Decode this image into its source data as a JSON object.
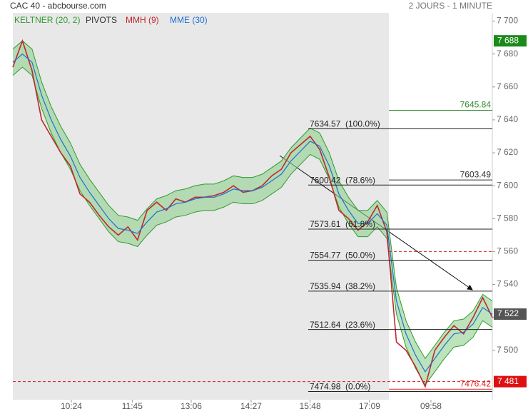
{
  "chart_data": {
    "type": "line",
    "title": "CAC 40 - abcbourse.com",
    "subtitle": "2 JOURS - 1 MINUTE",
    "pivots_label": "PIVOTS",
    "xlim": [
      0,
      100
    ],
    "ylim": [
      7470,
      7705
    ],
    "xticks": [
      {
        "value": 12.2,
        "label": "10:24"
      },
      {
        "value": 24.9,
        "label": "11:45"
      },
      {
        "value": 37.2,
        "label": "13:06"
      },
      {
        "value": 49.7,
        "label": "14:27"
      },
      {
        "value": 62.0,
        "label": "15:48"
      },
      {
        "value": 74.4,
        "label": "17:09"
      },
      {
        "value": 87.2,
        "label": "09:58"
      }
    ],
    "yticks": [
      {
        "value": 7500,
        "label": "7 500"
      },
      {
        "value": 7520,
        "label": "7 520"
      },
      {
        "value": 7540,
        "label": "7 540"
      },
      {
        "value": 7560,
        "label": "7 560"
      },
      {
        "value": 7580,
        "label": "7 580"
      },
      {
        "value": 7600,
        "label": "7 600"
      },
      {
        "value": 7620,
        "label": "7 620"
      },
      {
        "value": 7640,
        "label": "7 640"
      },
      {
        "value": 7660,
        "label": "7 660"
      },
      {
        "value": 7680,
        "label": "7 680"
      },
      {
        "value": 7700,
        "label": "7 700"
      }
    ],
    "x": [
      0,
      2,
      4,
      6,
      8,
      10,
      12,
      14,
      16,
      18,
      20,
      22,
      24,
      26,
      28,
      30,
      32,
      34,
      36,
      38,
      40,
      42,
      44,
      46,
      48,
      50,
      52,
      54,
      56,
      58,
      60,
      62,
      64,
      66,
      68,
      70,
      72,
      74,
      76,
      78,
      80,
      82,
      84,
      86,
      88,
      90,
      92,
      94,
      96,
      98,
      100
    ],
    "band": {
      "name": "KELTNER (20, 2)",
      "color": "#2f9a2f",
      "upper": [
        7683,
        7688,
        7683,
        7663,
        7648,
        7636,
        7626,
        7613,
        7604,
        7596,
        7588,
        7582,
        7581,
        7579,
        7586,
        7592,
        7594,
        7597,
        7598,
        7600,
        7601,
        7601,
        7603,
        7606,
        7605,
        7605,
        7607,
        7611,
        7615,
        7623,
        7629,
        7635,
        7632,
        7620,
        7603,
        7593,
        7585,
        7585,
        7591,
        7584,
        7538,
        7518,
        7505,
        7495,
        7503,
        7511,
        7518,
        7519,
        7524,
        7534,
        7530
      ],
      "lower": [
        7667,
        7672,
        7667,
        7647,
        7632,
        7620,
        7610,
        7597,
        7588,
        7580,
        7572,
        7566,
        7565,
        7563,
        7570,
        7576,
        7578,
        7581,
        7582,
        7584,
        7585,
        7585,
        7587,
        7590,
        7589,
        7589,
        7591,
        7595,
        7599,
        7607,
        7613,
        7619,
        7616,
        7604,
        7587,
        7577,
        7569,
        7569,
        7575,
        7568,
        7522,
        7502,
        7489,
        7479,
        7487,
        7495,
        7502,
        7503,
        7508,
        7518,
        7514
      ]
    },
    "series": [
      {
        "name": "MMH (9)",
        "color": "#c0282d",
        "values": [
          7672,
          7688,
          7670,
          7640,
          7630,
          7620,
          7612,
          7595,
          7590,
          7582,
          7575,
          7570,
          7575,
          7567,
          7585,
          7590,
          7585,
          7592,
          7590,
          7593,
          7593,
          7594,
          7596,
          7600,
          7596,
          7597,
          7600,
          7606,
          7610,
          7620,
          7625,
          7630,
          7622,
          7605,
          7585,
          7580,
          7573,
          7578,
          7588,
          7572,
          7505,
          7500,
          7490,
          7478,
          7500,
          7508,
          7515,
          7510,
          7520,
          7532,
          7520
        ]
      },
      {
        "name": "MME (30)",
        "color": "#1f6fd1",
        "values": [
          7675,
          7680,
          7675,
          7655,
          7640,
          7628,
          7618,
          7605,
          7596,
          7588,
          7580,
          7574,
          7573,
          7571,
          7578,
          7584,
          7586,
          7589,
          7590,
          7592,
          7593,
          7593,
          7595,
          7598,
          7597,
          7597,
          7599,
          7603,
          7607,
          7615,
          7621,
          7627,
          7624,
          7612,
          7595,
          7585,
          7577,
          7577,
          7583,
          7576,
          7530,
          7510,
          7497,
          7487,
          7495,
          7503,
          7510,
          7511,
          7516,
          7526,
          7522
        ]
      }
    ],
    "fib_levels": [
      {
        "value": 7634.57,
        "pct": "(100.0%)"
      },
      {
        "value": 7600.42,
        "pct": "(78.6%)"
      },
      {
        "value": 7573.61,
        "pct": "(61.8%)"
      },
      {
        "value": 7554.77,
        "pct": "(50.0%)"
      },
      {
        "value": 7535.94,
        "pct": "(38.2%)"
      },
      {
        "value": 7512.64,
        "pct": "(23.6%)"
      },
      {
        "value": 7474.98,
        "pct": "(0.0%)"
      }
    ],
    "pivots": [
      {
        "value": 7645.84,
        "color": "#2e8b2e"
      },
      {
        "value": 7603.49,
        "color": "#333333"
      },
      {
        "value": 7560,
        "color": "#dd2222",
        "dashed": true
      },
      {
        "value": 7476.42,
        "color": "#dd2222"
      }
    ],
    "price_badges": [
      {
        "value": 7688,
        "label": "7 688",
        "color": "#1a8a1a"
      },
      {
        "value": 7522,
        "label": "7 522",
        "color": "#555555"
      },
      {
        "value": 7481,
        "label": "7 481",
        "color": "#dd1111",
        "line": true
      }
    ]
  }
}
